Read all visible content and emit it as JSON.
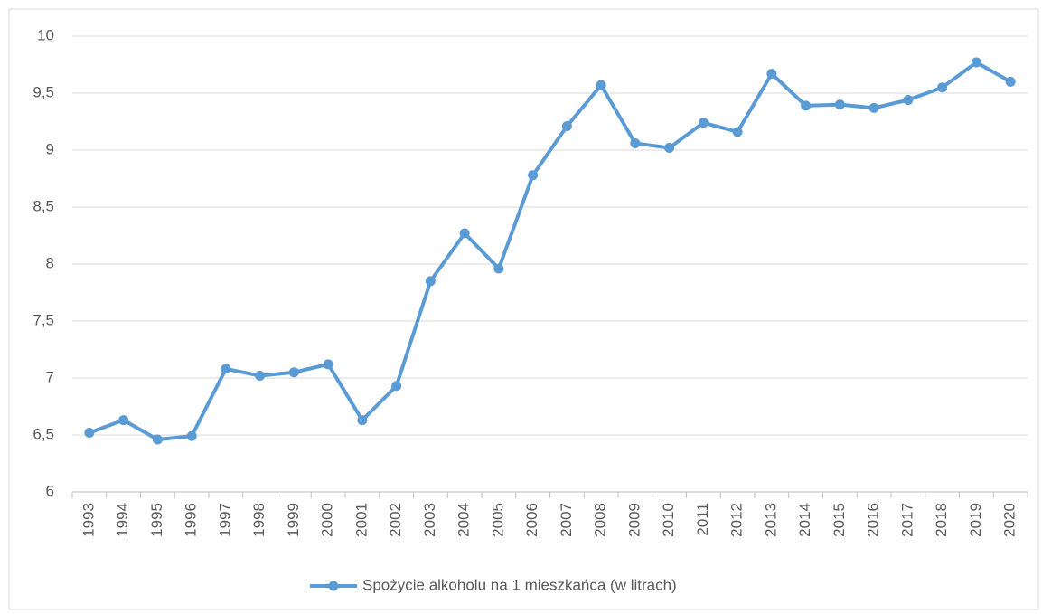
{
  "chart_data": {
    "type": "line",
    "categories": [
      "1993",
      "1994",
      "1995",
      "1996",
      "1997",
      "1998",
      "1999",
      "2000",
      "2001",
      "2002",
      "2003",
      "2004",
      "2005",
      "2006",
      "2007",
      "2008",
      "2009",
      "2010",
      "2011",
      "2012",
      "2013",
      "2014",
      "2015",
      "2016",
      "2017",
      "2018",
      "2019",
      "2020"
    ],
    "series": [
      {
        "name": "Spożycie alkoholu na 1 mieszkańca (w litrach)",
        "color": "#5b9bd5",
        "values": [
          6.52,
          6.63,
          6.46,
          6.49,
          7.08,
          7.02,
          7.05,
          7.12,
          6.63,
          6.93,
          7.85,
          8.27,
          7.96,
          8.78,
          9.21,
          9.57,
          9.06,
          9.02,
          9.24,
          9.16,
          9.67,
          9.39,
          9.4,
          9.37,
          9.44,
          9.55,
          9.77,
          9.6
        ]
      }
    ],
    "ylim": [
      6,
      10
    ],
    "yticks": [
      6,
      {
        "value": 6.5,
        "label": "6,5"
      },
      7,
      {
        "value": 7.5,
        "label": "7,5"
      },
      8,
      {
        "value": 8.5,
        "label": "8,5"
      },
      9,
      {
        "value": 9.5,
        "label": "9,5"
      },
      10
    ],
    "grid": true,
    "legend": "bottom"
  }
}
